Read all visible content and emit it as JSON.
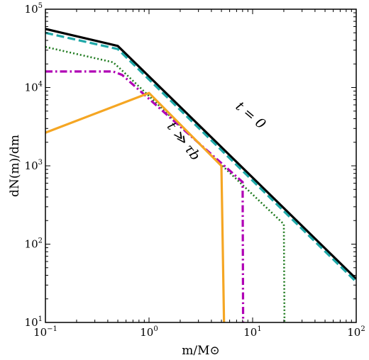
{
  "chart_data": {
    "type": "line",
    "xlabel": "m/M⊙",
    "ylabel": "dN(m)/dm",
    "xscale": "log",
    "yscale": "log",
    "xlim": [
      0.1,
      100
    ],
    "ylim": [
      10,
      100000
    ],
    "grid": false,
    "legend": "none",
    "x_tick_labels": [
      {
        "base": "10",
        "exp": "−1",
        "value": 0.1
      },
      {
        "base": "10",
        "exp": "0",
        "value": 1
      },
      {
        "base": "10",
        "exp": "1",
        "value": 10
      },
      {
        "base": "10",
        "exp": "2",
        "value": 100
      }
    ],
    "y_tick_labels": [
      {
        "base": "10",
        "exp": "1",
        "value": 10
      },
      {
        "base": "10",
        "exp": "2",
        "value": 100
      },
      {
        "base": "10",
        "exp": "3",
        "value": 1000
      },
      {
        "base": "10",
        "exp": "4",
        "value": 10000
      },
      {
        "base": "10",
        "exp": "5",
        "value": 100000
      }
    ],
    "annotations": [
      {
        "text": "t = 0",
        "x": 9,
        "y": 4000,
        "angle": 40
      },
      {
        "text": "t ≫ τb",
        "x": 2.0,
        "y": 1900,
        "angle": 52
      }
    ],
    "series": [
      {
        "color": "#000000",
        "style": "solid",
        "width": 3.2,
        "points": [
          [
            0.1,
            56000
          ],
          [
            0.5,
            34000
          ],
          [
            100,
            36
          ]
        ]
      },
      {
        "color": "#1fa8a8",
        "style": "dashed",
        "width": 3.2,
        "points": [
          [
            0.1,
            50000
          ],
          [
            0.5,
            31000
          ],
          [
            100,
            33
          ]
        ]
      },
      {
        "color": "#1e7a1e",
        "style": "dotted",
        "width": 2.6,
        "points": [
          [
            0.1,
            33000
          ],
          [
            0.45,
            21000
          ],
          [
            0.55,
            16500
          ],
          [
            20,
            180
          ],
          [
            20.3,
            10
          ]
        ]
      },
      {
        "color": "#b000b5",
        "style": "dashdot",
        "width": 3.2,
        "points": [
          [
            0.1,
            16000
          ],
          [
            0.45,
            16000
          ],
          [
            0.55,
            14500
          ],
          [
            8,
            620
          ],
          [
            8.1,
            10
          ]
        ]
      },
      {
        "color": "#f5a623",
        "style": "solid",
        "width": 3.2,
        "points": [
          [
            0.1,
            2650
          ],
          [
            1.0,
            8500
          ],
          [
            5,
            1000
          ],
          [
            5.3,
            10
          ]
        ]
      }
    ]
  }
}
